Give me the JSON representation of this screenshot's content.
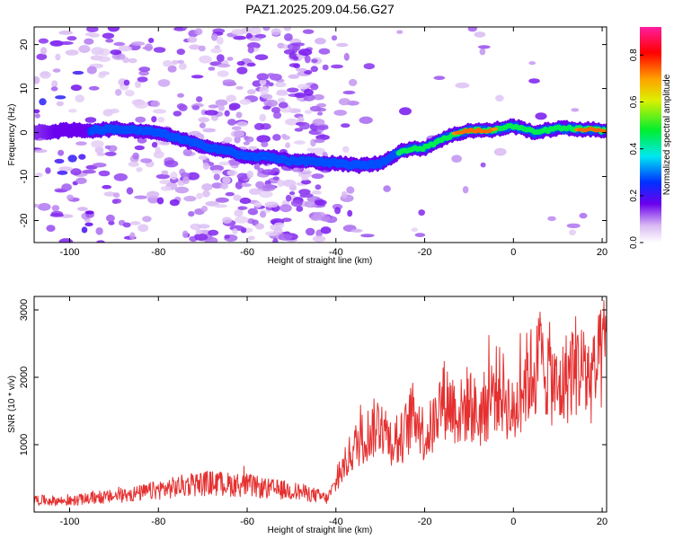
{
  "title": "PAZ1.2025.209.04.56.G27",
  "chart_data": [
    {
      "type": "heatmap",
      "xlabel": "Height of straight line (km)",
      "ylabel": "Frequency (Hz)",
      "xlim": [
        -108,
        21
      ],
      "ylim": [
        -25,
        24
      ],
      "xticks": [
        -100,
        -80,
        -60,
        -40,
        -20,
        0,
        20
      ],
      "yticks": [
        -20,
        -10,
        0,
        10,
        20
      ],
      "colorbar": {
        "label": "Normalized spectral amplitude",
        "range": [
          0,
          0.92
        ],
        "ticks": [
          "0.0",
          "0.2",
          "0.4",
          "0.6",
          "0.8"
        ]
      },
      "ridge_x": [
        -108,
        -100,
        -95,
        -90,
        -85,
        -80,
        -75,
        -70,
        -65,
        -60,
        -55,
        -50,
        -45,
        -42,
        -40,
        -35,
        -30,
        -25,
        -20,
        -15,
        -10,
        -5,
        0,
        5,
        10,
        15,
        20,
        21
      ],
      "ridge_frequency": [
        0,
        0.5,
        0.5,
        0.8,
        0.5,
        0,
        -1.5,
        -3,
        -4,
        -5.5,
        -5.5,
        -6.5,
        -6.5,
        -7,
        -7,
        -7.5,
        -7,
        -4,
        -3.5,
        -1,
        0.5,
        0.5,
        1.5,
        0,
        1,
        0.8,
        0.5,
        0.5
      ],
      "ridge_amplitude": [
        0.15,
        0.2,
        0.3,
        0.35,
        0.35,
        0.3,
        0.4,
        0.45,
        0.45,
        0.4,
        0.35,
        0.3,
        0.3,
        0.3,
        0.3,
        0.35,
        0.4,
        0.5,
        0.5,
        0.7,
        0.9,
        0.8,
        0.6,
        0.5,
        0.6,
        0.8,
        0.9,
        0.9
      ]
    },
    {
      "type": "line",
      "xlabel": "Height of straight line (km)",
      "ylabel": "SNR (10 * v/v)",
      "xlim": [
        -108,
        21
      ],
      "ylim": [
        0,
        3200
      ],
      "xticks": [
        -100,
        -80,
        -60,
        -40,
        -20,
        0,
        20
      ],
      "yticks": [
        1000,
        2000,
        3000
      ],
      "color": "#e53030",
      "x": [
        -108,
        -104,
        -100,
        -96,
        -92,
        -88,
        -84,
        -80,
        -76,
        -72,
        -68,
        -64,
        -60,
        -56,
        -52,
        -48,
        -44,
        -42,
        -40,
        -38,
        -36,
        -34,
        -32,
        -30,
        -28,
        -26,
        -24,
        -22,
        -20,
        -18,
        -16,
        -14,
        -12,
        -10,
        -8,
        -6,
        -4,
        -2,
        0,
        2,
        4,
        6,
        8,
        10,
        12,
        14,
        16,
        18,
        20,
        21
      ],
      "values": [
        180,
        170,
        160,
        200,
        220,
        250,
        280,
        330,
        370,
        420,
        430,
        410,
        400,
        350,
        330,
        300,
        240,
        200,
        420,
        700,
        950,
        1100,
        1200,
        1350,
        1100,
        1000,
        1250,
        1500,
        1100,
        1300,
        1700,
        1600,
        1450,
        1650,
        1400,
        1600,
        1850,
        1750,
        1400,
        1900,
        2050,
        2200,
        2100,
        1750,
        2000,
        2200,
        2050,
        1950,
        2300,
        2500
      ]
    }
  ]
}
